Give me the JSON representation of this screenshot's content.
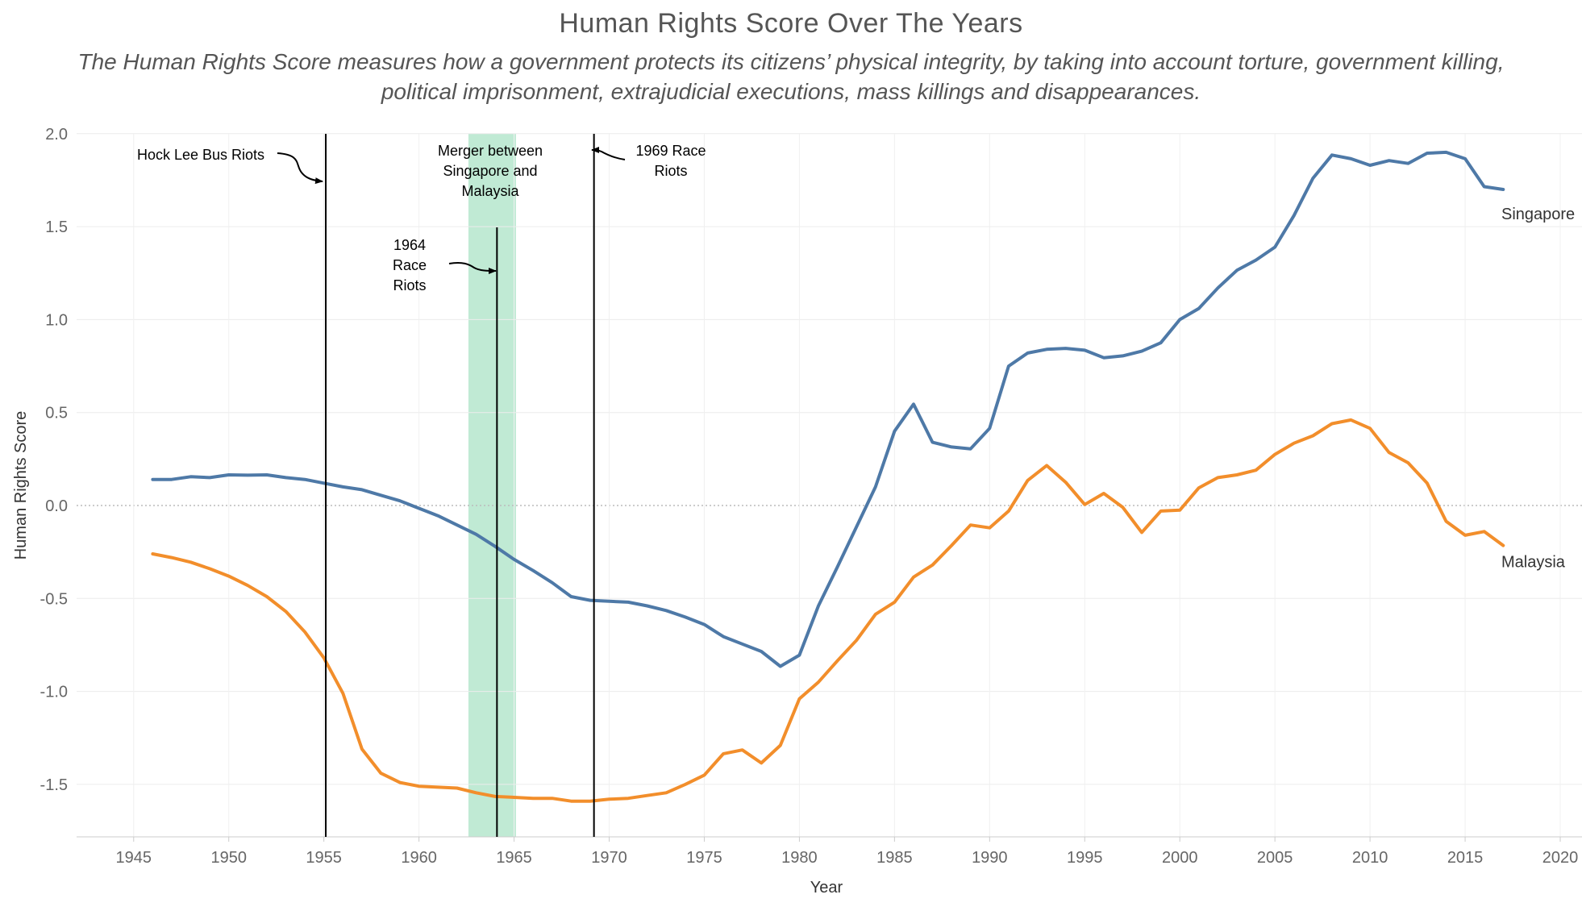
{
  "chart_data": {
    "type": "line",
    "title": "Human Rights Score Over The Years",
    "subtitle_lines": [
      "The Human Rights Score measures how a government protects its citizens’ physical integrity, by taking into account torture, government killing,",
      "political imprisonment, extrajudicial executions, mass killings and disappearances."
    ],
    "xlabel": "Year",
    "ylabel": "Human Rights Score",
    "xlim": [
      1942,
      2021
    ],
    "ylim": [
      -1.8,
      2.0
    ],
    "x_ticks": [
      "1945",
      "1950",
      "1955",
      "1960",
      "1965",
      "1970",
      "1975",
      "1980",
      "1985",
      "1990",
      "1995",
      "2000",
      "2005",
      "2010",
      "2015",
      "2020"
    ],
    "y_ticks": [
      "2.0",
      "1.5",
      "1.0",
      "0.5",
      "0.0",
      "-0.5",
      "-1.0",
      "-1.5"
    ],
    "grid": true,
    "zero_line": "dotted",
    "x": [
      1946,
      1947,
      1948,
      1949,
      1950,
      1951,
      1952,
      1953,
      1954,
      1955,
      1956,
      1957,
      1958,
      1959,
      1960,
      1961,
      1962,
      1963,
      1964,
      1965,
      1966,
      1967,
      1968,
      1969,
      1970,
      1971,
      1972,
      1973,
      1974,
      1975,
      1976,
      1977,
      1978,
      1979,
      1980,
      1981,
      1982,
      1983,
      1984,
      1985,
      1986,
      1987,
      1988,
      1989,
      1990,
      1991,
      1992,
      1993,
      1994,
      1995,
      1996,
      1997,
      1998,
      1999,
      2000,
      2001,
      2002,
      2003,
      2004,
      2005,
      2006,
      2007,
      2008,
      2009,
      2010,
      2011,
      2012,
      2013,
      2014,
      2015,
      2016,
      2017
    ],
    "series": [
      {
        "name": "Singapore",
        "color": "#4e79a7",
        "values": [
          0.14,
          0.14,
          0.155,
          0.15,
          0.165,
          0.163,
          0.165,
          0.15,
          0.14,
          0.12,
          0.1,
          0.085,
          0.055,
          0.025,
          -0.015,
          -0.055,
          -0.105,
          -0.155,
          -0.22,
          -0.29,
          -0.35,
          -0.415,
          -0.49,
          -0.51,
          -0.515,
          -0.52,
          -0.54,
          -0.565,
          -0.6,
          -0.64,
          -0.705,
          -0.745,
          -0.785,
          -0.865,
          -0.805,
          -0.54,
          -0.33,
          -0.115,
          0.1,
          0.4,
          0.545,
          0.34,
          0.315,
          0.305,
          0.415,
          0.75,
          0.82,
          0.84,
          0.845,
          0.835,
          0.795,
          0.805,
          0.83,
          0.875,
          1.0,
          1.06,
          1.17,
          1.265,
          1.32,
          1.39,
          1.56,
          1.76,
          1.885,
          1.865,
          1.83,
          1.855,
          1.84,
          1.895,
          1.9,
          1.865,
          1.715,
          1.7
        ]
      },
      {
        "name": "Malaysia",
        "color": "#f28e2b",
        "values": [
          -0.26,
          -0.28,
          -0.305,
          -0.34,
          -0.38,
          -0.43,
          -0.49,
          -0.57,
          -0.68,
          -0.82,
          -1.01,
          -1.31,
          -1.44,
          -1.49,
          -1.51,
          -1.515,
          -1.52,
          -1.545,
          -1.565,
          -1.57,
          -1.575,
          -1.575,
          -1.59,
          -1.59,
          -1.58,
          -1.575,
          -1.56,
          -1.545,
          -1.5,
          -1.45,
          -1.335,
          -1.315,
          -1.385,
          -1.29,
          -1.04,
          -0.95,
          -0.835,
          -0.725,
          -0.585,
          -0.52,
          -0.385,
          -0.32,
          -0.215,
          -0.105,
          -0.12,
          -0.03,
          0.135,
          0.215,
          0.125,
          0.005,
          0.065,
          -0.01,
          -0.145,
          -0.03,
          -0.025,
          0.095,
          0.15,
          0.165,
          0.19,
          0.275,
          0.335,
          0.375,
          0.44,
          0.46,
          0.415,
          0.285,
          0.23,
          0.12,
          -0.085,
          -0.16,
          -0.14,
          -0.215
        ]
      }
    ],
    "annotations": {
      "events": [
        {
          "year": 1955.1,
          "lines": [
            "Hock Lee Bus Riots"
          ]
        },
        {
          "year": 1964.1,
          "lines": [
            "1964",
            "Race",
            "Riots"
          ]
        },
        {
          "year": 1969.2,
          "lines": [
            "1969 Race",
            "Riots"
          ]
        }
      ],
      "band": {
        "from": 1962.6,
        "to": 1965.1,
        "color": "#c0ead4",
        "lines": [
          "Merger between",
          "Singapore and",
          "Malaysia"
        ]
      }
    }
  }
}
